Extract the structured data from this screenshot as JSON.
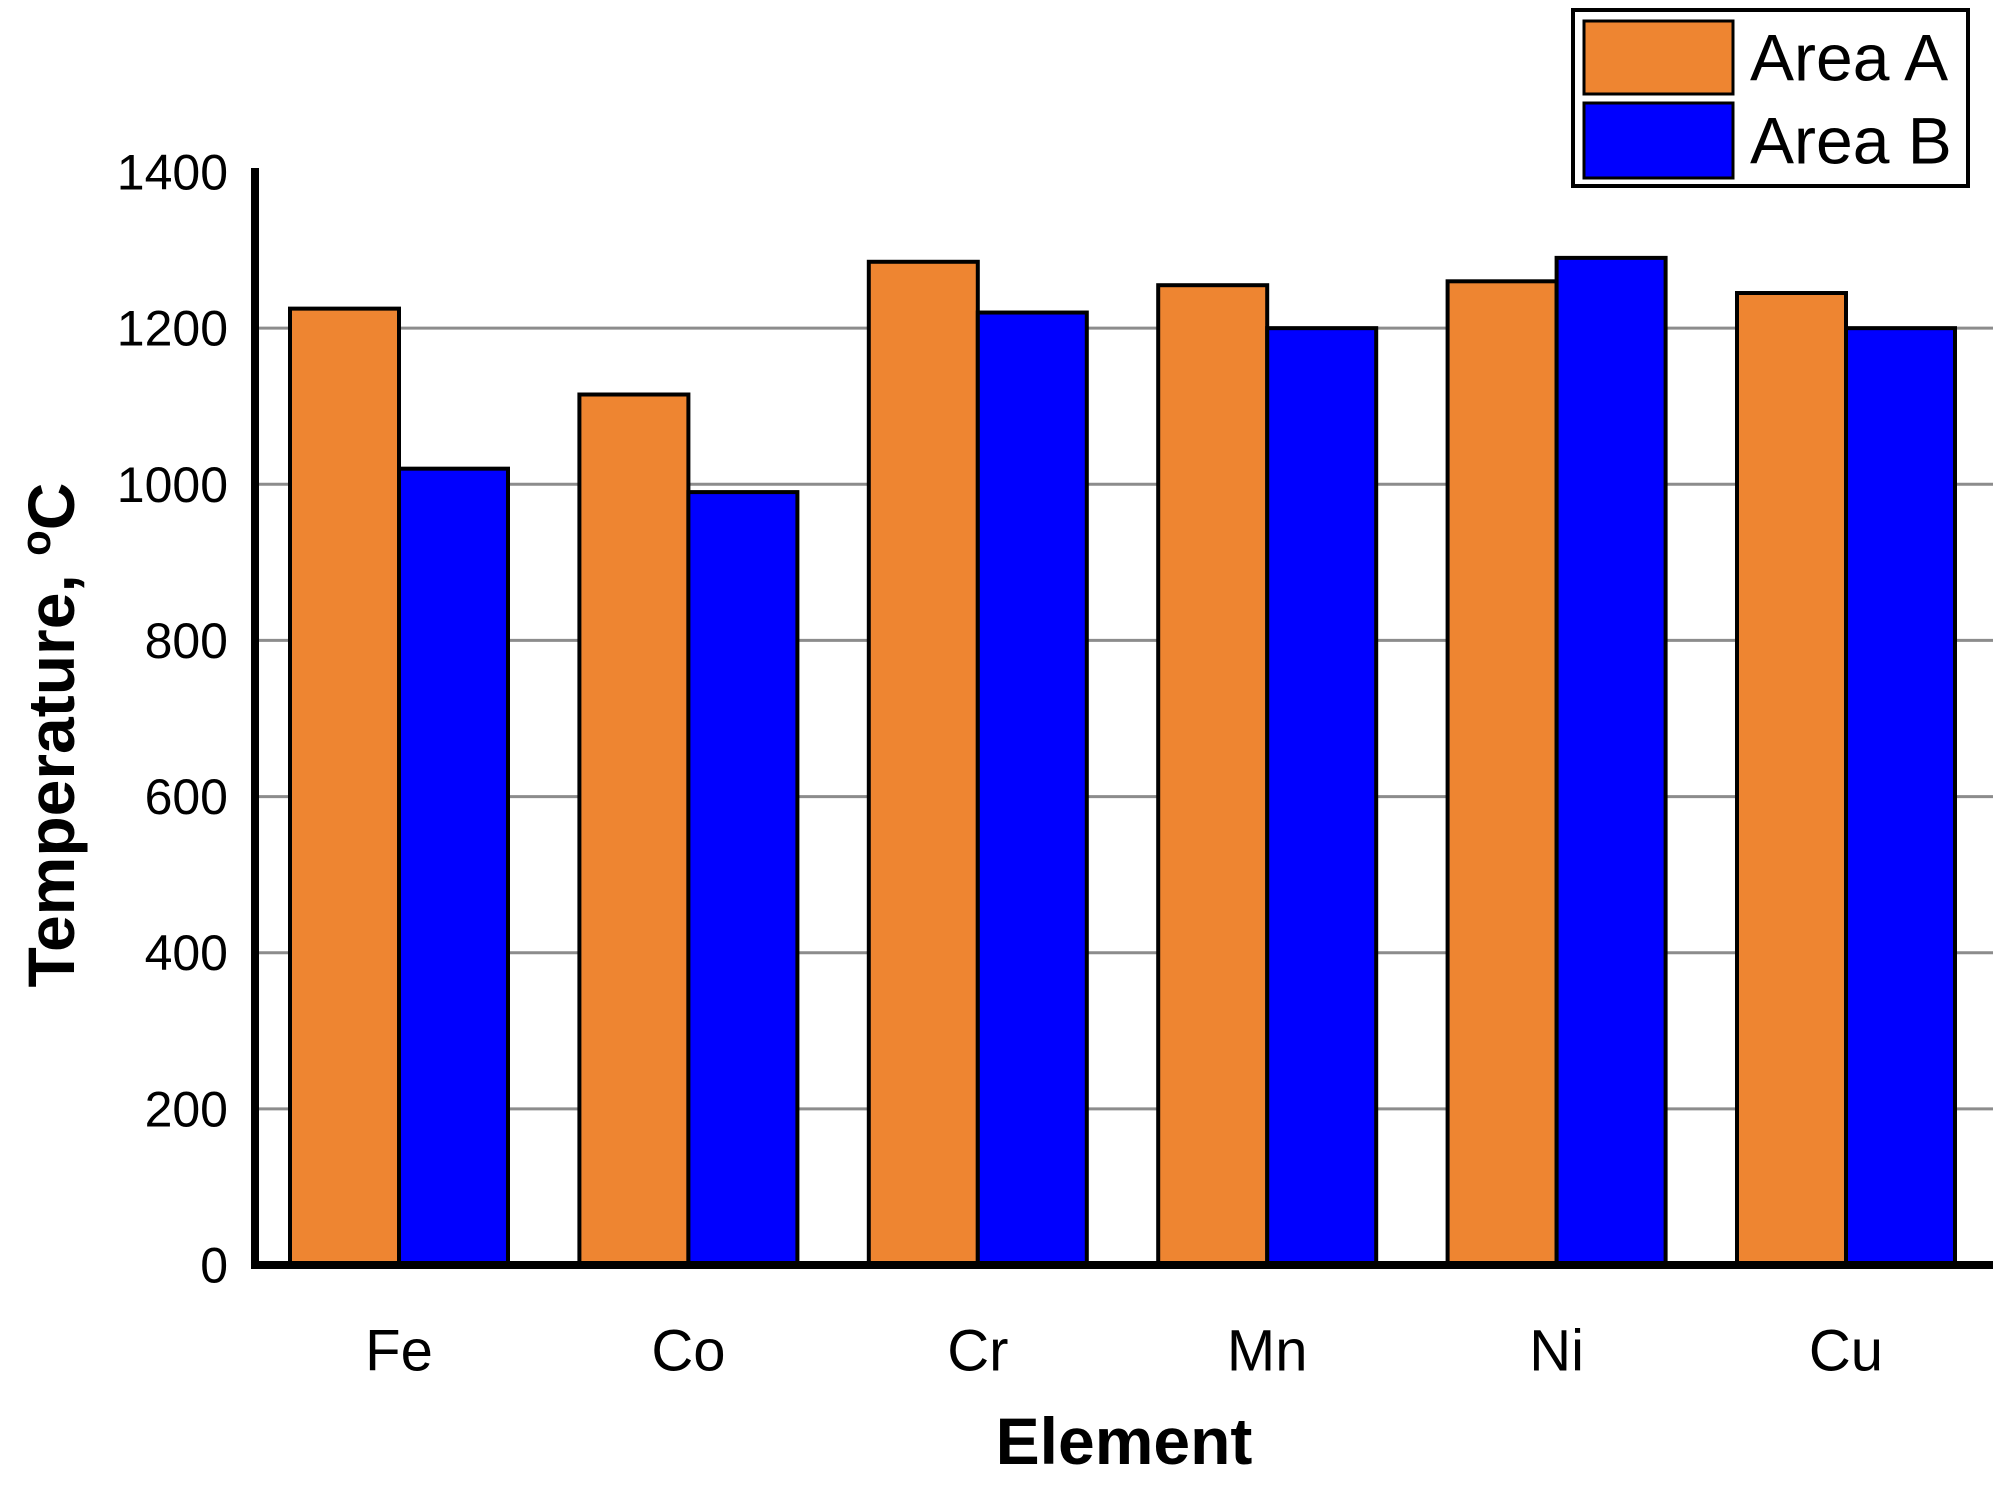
{
  "chart_data": {
    "type": "bar",
    "title": "",
    "categories": [
      "Fe",
      "Co",
      "Cr",
      "Mn",
      "Ni",
      "Cu"
    ],
    "series": [
      {
        "name": "Area A",
        "color": "#EE8531",
        "values": [
          1225,
          1115,
          1285,
          1255,
          1260,
          1245
        ]
      },
      {
        "name": "Area B",
        "color": "#0000FF",
        "values": [
          1020,
          990,
          1220,
          1200,
          1290,
          1200
        ]
      }
    ],
    "xlabel": "Element",
    "ylabel": "Temperature, °C",
    "ylim": [
      0,
      1400
    ],
    "yticks": [
      0,
      200,
      400,
      600,
      800,
      1000,
      1200,
      1400
    ],
    "grid": true,
    "grid_color": "#8C8C8C",
    "axis_color": "#000000",
    "bar_edge_color": "#000000",
    "background_color": "#FFFFFF",
    "legend": {
      "position": "top-right",
      "entries": [
        "Area A",
        "Area B"
      ]
    }
  }
}
